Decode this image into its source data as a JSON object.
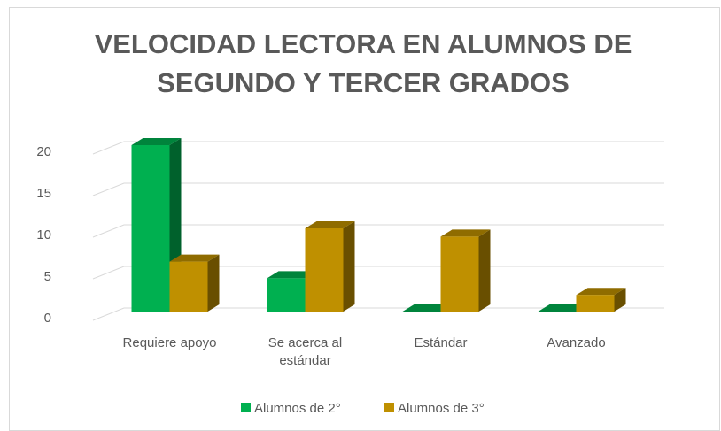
{
  "chart_data": {
    "type": "bar3d",
    "title": "VELOCIDAD LECTORA EN ALUMNOS DE SEGUNDO Y TERCER GRADOS",
    "categories": [
      "Requiere apoyo",
      "Se acerca al estándar",
      "Estándar",
      "Avanzado"
    ],
    "series": [
      {
        "name": "Alumnos de 2°",
        "color": "#00b050",
        "values": [
          20,
          4,
          0,
          0
        ]
      },
      {
        "name": "Alumnos de 3°",
        "color": "#bf9000",
        "values": [
          6,
          10,
          9,
          2
        ]
      }
    ],
    "ylim": [
      0,
      20
    ],
    "yticks": [
      0,
      5,
      10,
      15,
      20
    ],
    "grid": true,
    "legend": "bottom"
  }
}
